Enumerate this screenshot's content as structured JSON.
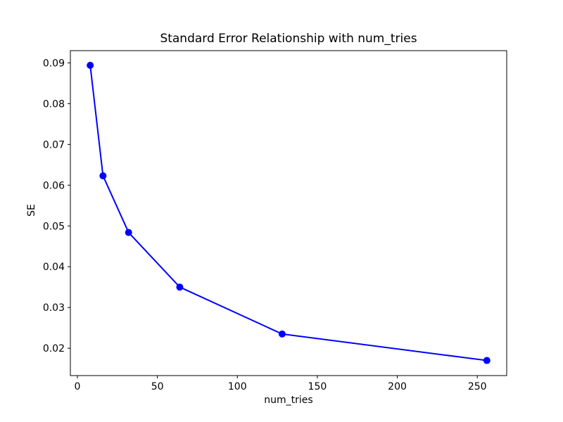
{
  "chart_data": {
    "type": "line",
    "title": "Standard Error Relationship with num_tries",
    "xlabel": "num_tries",
    "ylabel": "SE",
    "x": [
      8,
      16,
      32,
      64,
      128,
      256
    ],
    "y": [
      0.0894,
      0.0623,
      0.0484,
      0.035,
      0.0235,
      0.017
    ],
    "x_ticks": [
      0,
      50,
      100,
      150,
      200,
      250
    ],
    "y_ticks": [
      0.02,
      0.03,
      0.04,
      0.05,
      0.06,
      0.07,
      0.08,
      0.09
    ],
    "xlim": [
      -4.4,
      268.4
    ],
    "ylim": [
      0.0133,
      0.093
    ],
    "line_color": "#0000ff",
    "marker": "circle",
    "grid": false,
    "legend_position": "none",
    "background_color": "#ffffff",
    "axis_color": "#000000"
  }
}
